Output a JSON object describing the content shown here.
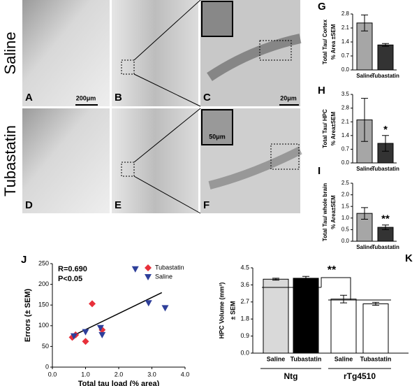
{
  "images": {
    "row_labels": [
      "Saline",
      "Tubastatin"
    ],
    "panels": [
      "A",
      "B",
      "C",
      "D",
      "E",
      "F"
    ],
    "scale_bars": [
      "200μm",
      "20μm",
      "50μm"
    ]
  },
  "chart_data": [
    {
      "type": "bar",
      "panel": "G",
      "ylabel": [
        "Total Tau/ Cortex",
        "% Area ±SEM"
      ],
      "categories": [
        "Saline",
        "Tubastatin"
      ],
      "values": [
        2.35,
        1.25
      ],
      "errors": [
        0.4,
        0.07
      ],
      "colors": [
        "#a6a6a6",
        "#333333"
      ],
      "significance": [
        null,
        null
      ],
      "ylim": [
        0,
        2.8
      ],
      "yticks": [
        {
          "value": 0,
          "label": "0.0"
        },
        0.7,
        1.4,
        2.1,
        2.8
      ]
    },
    {
      "type": "bar",
      "panel": "H",
      "ylabel": [
        "Total Tau/ HPC",
        "% Area±SEM"
      ],
      "categories": [
        "Saline",
        "Tubastatin"
      ],
      "values": [
        2.2,
        1.0
      ],
      "errors": [
        1.1,
        0.4
      ],
      "colors": [
        "#a6a6a6",
        "#333333"
      ],
      "significance": [
        null,
        "*"
      ],
      "ylim": [
        0,
        3.5
      ],
      "yticks": [
        {
          "value": 0,
          "label": "0.0"
        },
        0.7,
        1.4,
        2.1,
        2.8,
        3.5
      ]
    },
    {
      "type": "bar",
      "panel": "I",
      "ylabel": [
        "Total Tau/ whole brain",
        "% Area±SEM"
      ],
      "categories": [
        "Saline",
        "Tubastatin"
      ],
      "values": [
        1.2,
        0.6
      ],
      "errors": [
        0.25,
        0.1
      ],
      "colors": [
        "#a6a6a6",
        "#333333"
      ],
      "significance": [
        null,
        "**"
      ],
      "ylim": [
        0,
        2.5
      ],
      "yticks": [
        {
          "value": 0,
          "label": "0.0"
        },
        0.5,
        {
          "value": 1,
          "label": "1.0"
        },
        1.5,
        {
          "value": 2,
          "label": "2.0"
        },
        2.5
      ]
    },
    {
      "type": "scatter",
      "panel": "J",
      "xlabel": "Total tau load (% area)",
      "ylabel": "Errors (± SEM)",
      "annotations": [
        "R=0.690",
        "P<0.05"
      ],
      "series": [
        {
          "name": "Tubastatin",
          "color": "#e8303a",
          "marker": "diamond",
          "x": [
            0.6,
            0.7,
            1.0,
            1.2,
            1.5
          ],
          "y": [
            72,
            78,
            62,
            153,
            90
          ]
        },
        {
          "name": "Saline",
          "color": "#2e3f9a",
          "marker": "triangle",
          "x": [
            0.65,
            1.0,
            1.45,
            1.5,
            2.5,
            2.9,
            3.4
          ],
          "y": [
            75,
            85,
            95,
            78,
            237,
            155,
            143
          ]
        }
      ],
      "trendline": {
        "x": [
          0.6,
          3.3
        ],
        "y": [
          75,
          180
        ]
      },
      "xlim": [
        0,
        4
      ],
      "xticks": [
        {
          "value": 0,
          "label": "0.0"
        },
        {
          "value": 1,
          "label": "1.0"
        },
        {
          "value": 2,
          "label": "2.0"
        },
        {
          "value": 3,
          "label": "3.0"
        },
        {
          "value": 4,
          "label": "4.0"
        }
      ],
      "ylim": [
        0,
        250
      ],
      "yticks": [
        0,
        50,
        100,
        150,
        200,
        250
      ]
    },
    {
      "type": "bar",
      "panel": "K",
      "ylabel": [
        "HPC Volume (mm³)",
        "± SEM"
      ],
      "categories": [
        "Saline",
        "Tubastatin",
        "Saline",
        "Tubastatin"
      ],
      "values": [
        3.9,
        3.95,
        2.85,
        2.6
      ],
      "errors": [
        0.05,
        0.1,
        0.2,
        0.08
      ],
      "colors": [
        "#d9d9d9",
        "#000000",
        "#ffffff",
        "#ffffff"
      ],
      "significance": [
        null,
        null,
        null,
        null
      ],
      "groups": [
        "Ntg",
        "rTg4510"
      ],
      "group_annotation": "**",
      "ylim": [
        0,
        4.5
      ],
      "yticks": [
        {
          "value": 0,
          "label": "0.0"
        },
        0.9,
        1.8,
        2.7,
        3.6,
        4.5
      ]
    }
  ]
}
